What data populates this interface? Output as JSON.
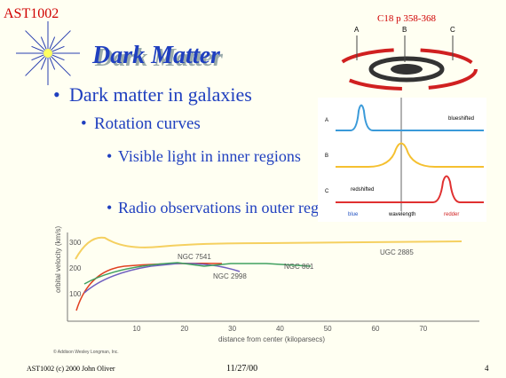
{
  "header": {
    "course": "AST1002",
    "reference": "C18  p 358-368"
  },
  "title": "Dark Matter",
  "bullets": {
    "text": "Dark matter in galaxies",
    "sub": {
      "text": "Rotation curves",
      "items": [
        "Visible light in inner regions",
        "Radio observations in outer regions"
      ]
    }
  },
  "spectra_figure": {
    "galaxy_labels": [
      "A",
      "B",
      "C"
    ],
    "panel_labels": [
      "A",
      "B",
      "C"
    ],
    "blueshifted": "blueshifted",
    "redshifted": "redshifted",
    "axis_labels": [
      "blue",
      "wavelength",
      "redder"
    ]
  },
  "rotation_figure": {
    "y_label": "orbital velocity (km/s)",
    "x_label": "distance from center (kiloparsecs)",
    "yticks": [
      "300",
      "200",
      "100"
    ],
    "xticks": [
      "10",
      "20",
      "30",
      "40",
      "50",
      "60",
      "70"
    ],
    "curve_labels": [
      "UGC 2885",
      "NGC 7541",
      "NGC 2998",
      "NGC 801"
    ],
    "credit": "© Addison Wesley Longman, Inc."
  },
  "footer": {
    "left": "AST1002 (c) 2000 John Oliver",
    "date": "11/27/00",
    "page": "4"
  }
}
